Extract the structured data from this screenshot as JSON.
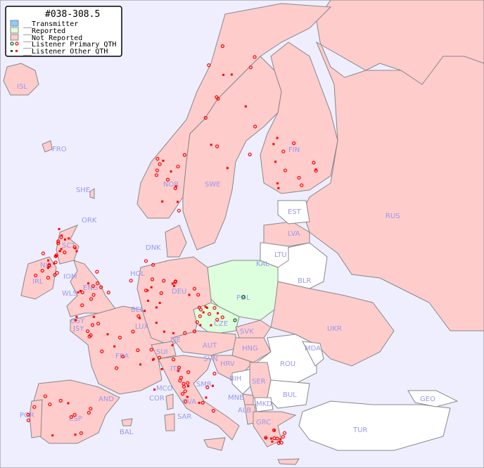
{
  "title": "#038-308.5",
  "legend": {
    "items": [
      {
        "label": "__Transmitter",
        "color": "#88ccff"
      },
      {
        "label": "__Reported",
        "color": "#ddffdd"
      },
      {
        "label": "__Not Reported",
        "color": "#ffcccc"
      },
      {
        "label": "__Listener Primary QTH"
      },
      {
        "label": "__Listener Other QTH"
      }
    ]
  },
  "colors": {
    "sea": "#eeeeff",
    "not_reported": "#ffcccc",
    "reported": "#ddffdd",
    "no_data": "#ffffff",
    "listener": "#ff0000",
    "listener_reported": "#006600",
    "label": "#9999ee"
  },
  "countries": [
    {
      "code": "ISL",
      "status": "not_reported"
    },
    {
      "code": "FRO",
      "status": "not_reported"
    },
    {
      "code": "SHE",
      "status": "not_reported"
    },
    {
      "code": "ORK",
      "status": "not_reported"
    },
    {
      "code": "NOR",
      "status": "not_reported"
    },
    {
      "code": "SWE",
      "status": "not_reported"
    },
    {
      "code": "FIN",
      "status": "not_reported"
    },
    {
      "code": "RUS",
      "status": "not_reported"
    },
    {
      "code": "EST",
      "status": "no_data"
    },
    {
      "code": "LVA",
      "status": "not_reported"
    },
    {
      "code": "LTU",
      "status": "no_data"
    },
    {
      "code": "KAL",
      "status": "no_data"
    },
    {
      "code": "BLR",
      "status": "no_data"
    },
    {
      "code": "DNK",
      "status": "not_reported"
    },
    {
      "code": "POL",
      "status": "reported"
    },
    {
      "code": "UKR",
      "status": "not_reported"
    },
    {
      "code": "SCT",
      "status": "not_reported"
    },
    {
      "code": "NIR",
      "status": "not_reported"
    },
    {
      "code": "IRL",
      "status": "not_reported"
    },
    {
      "code": "IOM",
      "status": "not_reported"
    },
    {
      "code": "ENG",
      "status": "not_reported"
    },
    {
      "code": "WLS",
      "status": "not_reported"
    },
    {
      "code": "HOL",
      "status": "not_reported"
    },
    {
      "code": "DEU",
      "status": "not_reported"
    },
    {
      "code": "BEL",
      "status": "not_reported"
    },
    {
      "code": "LUX",
      "status": "not_reported"
    },
    {
      "code": "GSY",
      "status": "not_reported"
    },
    {
      "code": "JSY",
      "status": "not_reported"
    },
    {
      "code": "CZE",
      "status": "reported"
    },
    {
      "code": "SVK",
      "status": "not_reported"
    },
    {
      "code": "MDA",
      "status": "no_data"
    },
    {
      "code": "FRA",
      "status": "not_reported"
    },
    {
      "code": "SUI",
      "status": "not_reported"
    },
    {
      "code": "LIE",
      "status": "not_reported"
    },
    {
      "code": "AUT",
      "status": "not_reported"
    },
    {
      "code": "HNG",
      "status": "not_reported"
    },
    {
      "code": "ROU",
      "status": "no_data"
    },
    {
      "code": "ITA",
      "status": "not_reported"
    },
    {
      "code": "SVN",
      "status": "not_reported"
    },
    {
      "code": "HRV",
      "status": "not_reported"
    },
    {
      "code": "BIH",
      "status": "no_data"
    },
    {
      "code": "SER",
      "status": "not_reported"
    },
    {
      "code": "BUL",
      "status": "no_data"
    },
    {
      "code": "MCO",
      "status": "not_reported"
    },
    {
      "code": "COR",
      "status": "not_reported"
    },
    {
      "code": "SMR",
      "status": "not_reported"
    },
    {
      "code": "CVA",
      "status": "not_reported"
    },
    {
      "code": "MNE",
      "status": "not_reported"
    },
    {
      "code": "ALB",
      "status": "not_reported"
    },
    {
      "code": "MKD",
      "status": "no_data"
    },
    {
      "code": "GRC",
      "status": "not_reported"
    },
    {
      "code": "TUR",
      "status": "no_data"
    },
    {
      "code": "GEO",
      "status": "no_data"
    },
    {
      "code": "POR",
      "status": "not_reported"
    },
    {
      "code": "ESP",
      "status": "not_reported"
    },
    {
      "code": "AND",
      "status": "not_reported"
    },
    {
      "code": "BAL",
      "status": "not_reported"
    },
    {
      "code": "SAR",
      "status": "not_reported"
    }
  ]
}
